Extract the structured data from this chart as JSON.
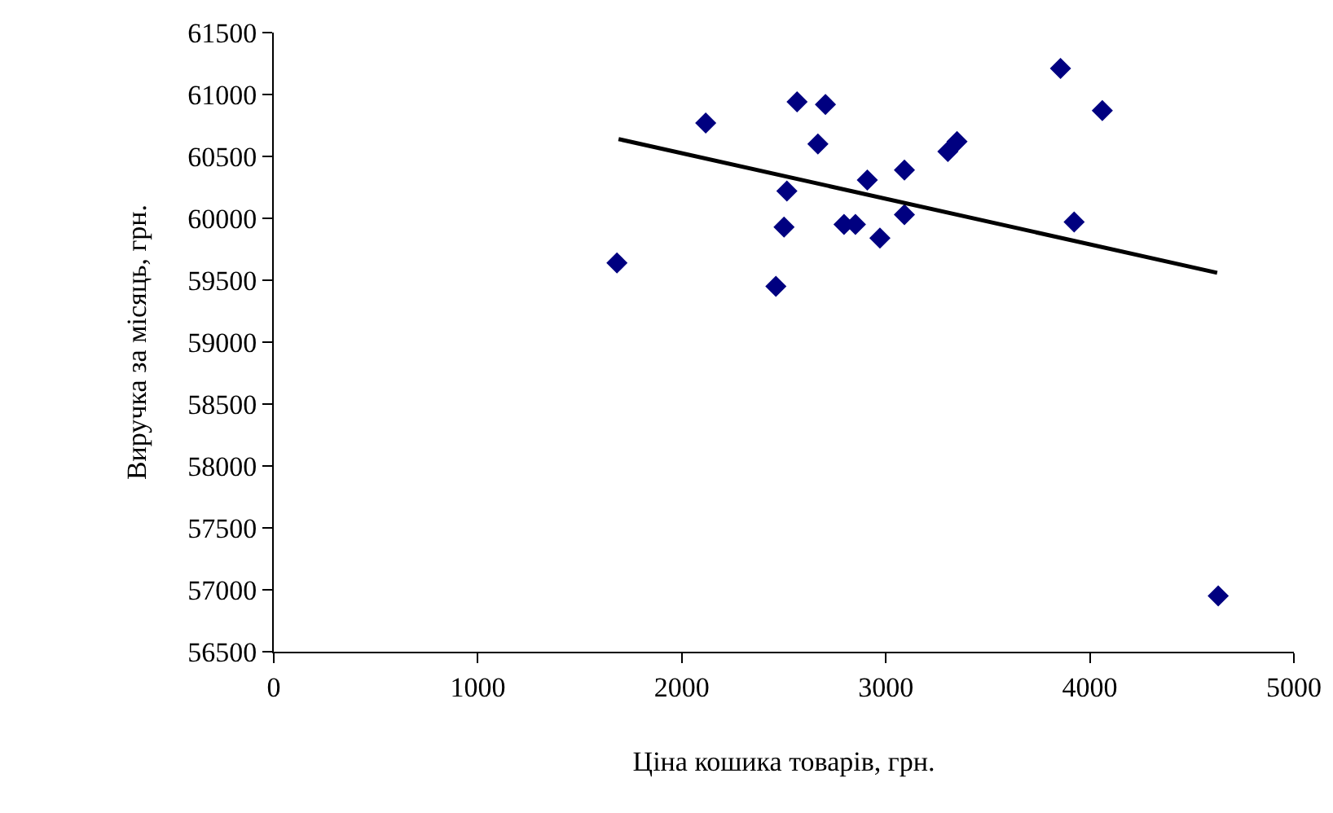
{
  "chart_data": {
    "type": "scatter",
    "xlabel": "Ціна кошика товарів, грн.",
    "ylabel": "Виручка за місяць, грн.",
    "x": [
      1682,
      2117,
      2565,
      2704,
      2667,
      2515,
      2501,
      2461,
      2909,
      3091,
      3091,
      2795,
      2851,
      2971,
      3856,
      4061,
      3304,
      3349,
      3923,
      4629
    ],
    "series": [
      {
        "color": "#000080",
        "marker": "diamond",
        "values": [
          59640,
          60770,
          60940,
          60920,
          60600,
          60220,
          59930,
          59450,
          60310,
          60390,
          60030,
          59950,
          59950,
          59840,
          61210,
          60870,
          60540,
          60620,
          59970,
          56950
        ]
      },
      {
        "type": "line",
        "color": "#000000",
        "x": [
          1690,
          4624
        ],
        "values": [
          60640,
          59560
        ]
      }
    ],
    "xlim": [
      0,
      5000
    ],
    "xticks": [
      0,
      1000,
      2000,
      3000,
      4000,
      5000
    ],
    "ylim": [
      56500,
      61500
    ],
    "yticks": [
      56500,
      57000,
      57500,
      58000,
      58500,
      59000,
      59500,
      60000,
      60500,
      61000,
      61500
    ],
    "grid": false
  }
}
